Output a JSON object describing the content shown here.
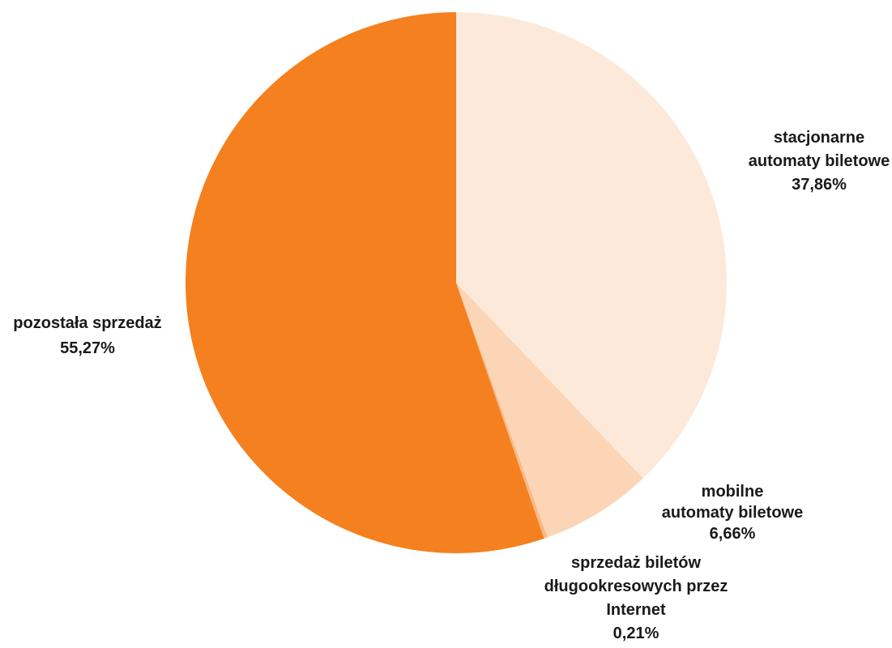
{
  "chart_data": {
    "type": "pie",
    "title": "",
    "start_angle_deg": 0,
    "direction": "clockwise",
    "slices": [
      {
        "label_lines": [
          "stacjonarne",
          "automaty biletowe"
        ],
        "value_label": "37,86%",
        "value": 37.86,
        "color": "#FDE9D9"
      },
      {
        "label_lines": [
          "mobilne",
          "automaty biletowe"
        ],
        "value_label": "6,66%",
        "value": 6.66,
        "color": "#FBD5B5"
      },
      {
        "label_lines": [
          "sprzedaż biletów",
          "długookresowych przez",
          "Internet"
        ],
        "value_label": "0,21%",
        "value": 0.21,
        "color": "#F9B987"
      },
      {
        "label_lines": [
          "pozostała sprzedaż"
        ],
        "value_label": "55,27%",
        "value": 55.27,
        "color": "#F4801F"
      }
    ]
  }
}
